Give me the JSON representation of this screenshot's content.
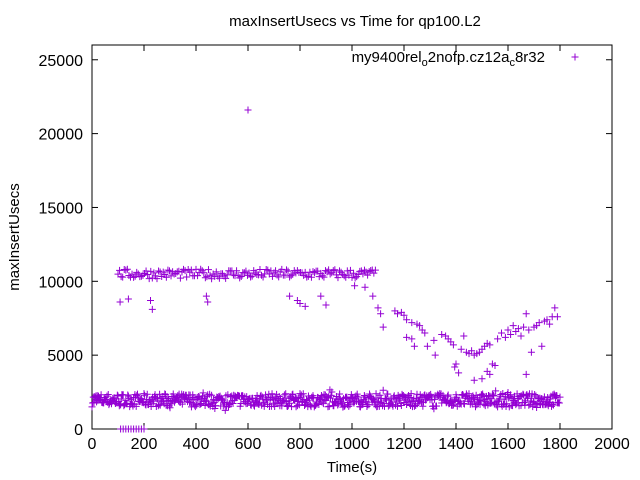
{
  "chart_data": {
    "type": "scatter",
    "title": "maxInsertUsecs vs Time for qp100.L2",
    "xlabel": "Time(s)",
    "ylabel": "maxInsertUsecs",
    "xlim": [
      0,
      2000
    ],
    "ylim": [
      0,
      26000
    ],
    "x_ticks": [
      "0",
      "200",
      "400",
      "600",
      "800",
      "1000",
      "1200",
      "1400",
      "1600",
      "1800",
      "2000"
    ],
    "y_ticks": [
      "0",
      "5000",
      "10000",
      "15000",
      "20000",
      "25000"
    ],
    "grid": false,
    "legend_position": "top-right",
    "color": "#9400d3",
    "marker": "plus",
    "legend": {
      "base": "my9400",
      "segments": [
        {
          "text": "rel",
          "sub": "o"
        },
        {
          "text": "2nofp.cz12a",
          "sub": "c"
        },
        {
          "text": "8r32",
          "sub": ""
        }
      ]
    },
    "series": [
      {
        "points": [
          [
            600,
            21600
          ],
          [
            110,
            0
          ],
          [
            120,
            0
          ],
          [
            130,
            0
          ],
          [
            140,
            0
          ],
          [
            150,
            0
          ],
          [
            160,
            0
          ],
          [
            170,
            0
          ],
          [
            180,
            0
          ],
          [
            190,
            0
          ],
          [
            200,
            0
          ],
          [
            108,
            8600
          ],
          [
            140,
            8800
          ],
          [
            225,
            8700
          ],
          [
            232,
            8100
          ],
          [
            440,
            9000
          ],
          [
            445,
            8600
          ],
          [
            760,
            9000
          ],
          [
            790,
            8700
          ],
          [
            800,
            8500
          ],
          [
            820,
            8300
          ],
          [
            880,
            9000
          ],
          [
            900,
            8400
          ],
          [
            1010,
            9700
          ],
          [
            1050,
            9600
          ],
          [
            1080,
            9000
          ],
          [
            1100,
            8200
          ],
          [
            1110,
            7800
          ],
          [
            1120,
            6900
          ],
          [
            1165,
            8000
          ],
          [
            1175,
            7800
          ],
          [
            1190,
            7900
          ],
          [
            1200,
            7700
          ],
          [
            1210,
            7400
          ],
          [
            1230,
            7200
          ],
          [
            1250,
            7100
          ],
          [
            1260,
            7000
          ],
          [
            1270,
            6700
          ],
          [
            1280,
            6500
          ],
          [
            1210,
            6200
          ],
          [
            1230,
            6100
          ],
          [
            1240,
            5600
          ],
          [
            1290,
            5600
          ],
          [
            1315,
            6000
          ],
          [
            1320,
            5000
          ],
          [
            1345,
            6400
          ],
          [
            1360,
            6300
          ],
          [
            1370,
            6100
          ],
          [
            1380,
            5900
          ],
          [
            1390,
            5700
          ],
          [
            1395,
            4200
          ],
          [
            1400,
            4400
          ],
          [
            1410,
            3800
          ],
          [
            1420,
            5400
          ],
          [
            1430,
            6300
          ],
          [
            1440,
            5200
          ],
          [
            1450,
            5100
          ],
          [
            1460,
            5300
          ],
          [
            1470,
            5000
          ],
          [
            1480,
            5100
          ],
          [
            1490,
            5200
          ],
          [
            1500,
            5400
          ],
          [
            1510,
            5600
          ],
          [
            1520,
            5800
          ],
          [
            1530,
            5700
          ],
          [
            1470,
            3300
          ],
          [
            1500,
            3400
          ],
          [
            1520,
            3900
          ],
          [
            1530,
            3700
          ],
          [
            1540,
            4400
          ],
          [
            1550,
            4300
          ],
          [
            1560,
            6100
          ],
          [
            1575,
            6500
          ],
          [
            1590,
            6200
          ],
          [
            1600,
            6700
          ],
          [
            1610,
            6400
          ],
          [
            1620,
            7000
          ],
          [
            1630,
            6600
          ],
          [
            1640,
            6800
          ],
          [
            1650,
            6300
          ],
          [
            1660,
            6900
          ],
          [
            1670,
            7800
          ],
          [
            1670,
            3700
          ],
          [
            1680,
            6700
          ],
          [
            1690,
            5200
          ],
          [
            1700,
            6900
          ],
          [
            1710,
            7000
          ],
          [
            1720,
            7200
          ],
          [
            1730,
            5600
          ],
          [
            1740,
            7300
          ],
          [
            1750,
            7400
          ],
          [
            1760,
            7100
          ],
          [
            1770,
            7600
          ],
          [
            1780,
            8200
          ],
          [
            1790,
            7600
          ]
        ]
      }
    ]
  }
}
